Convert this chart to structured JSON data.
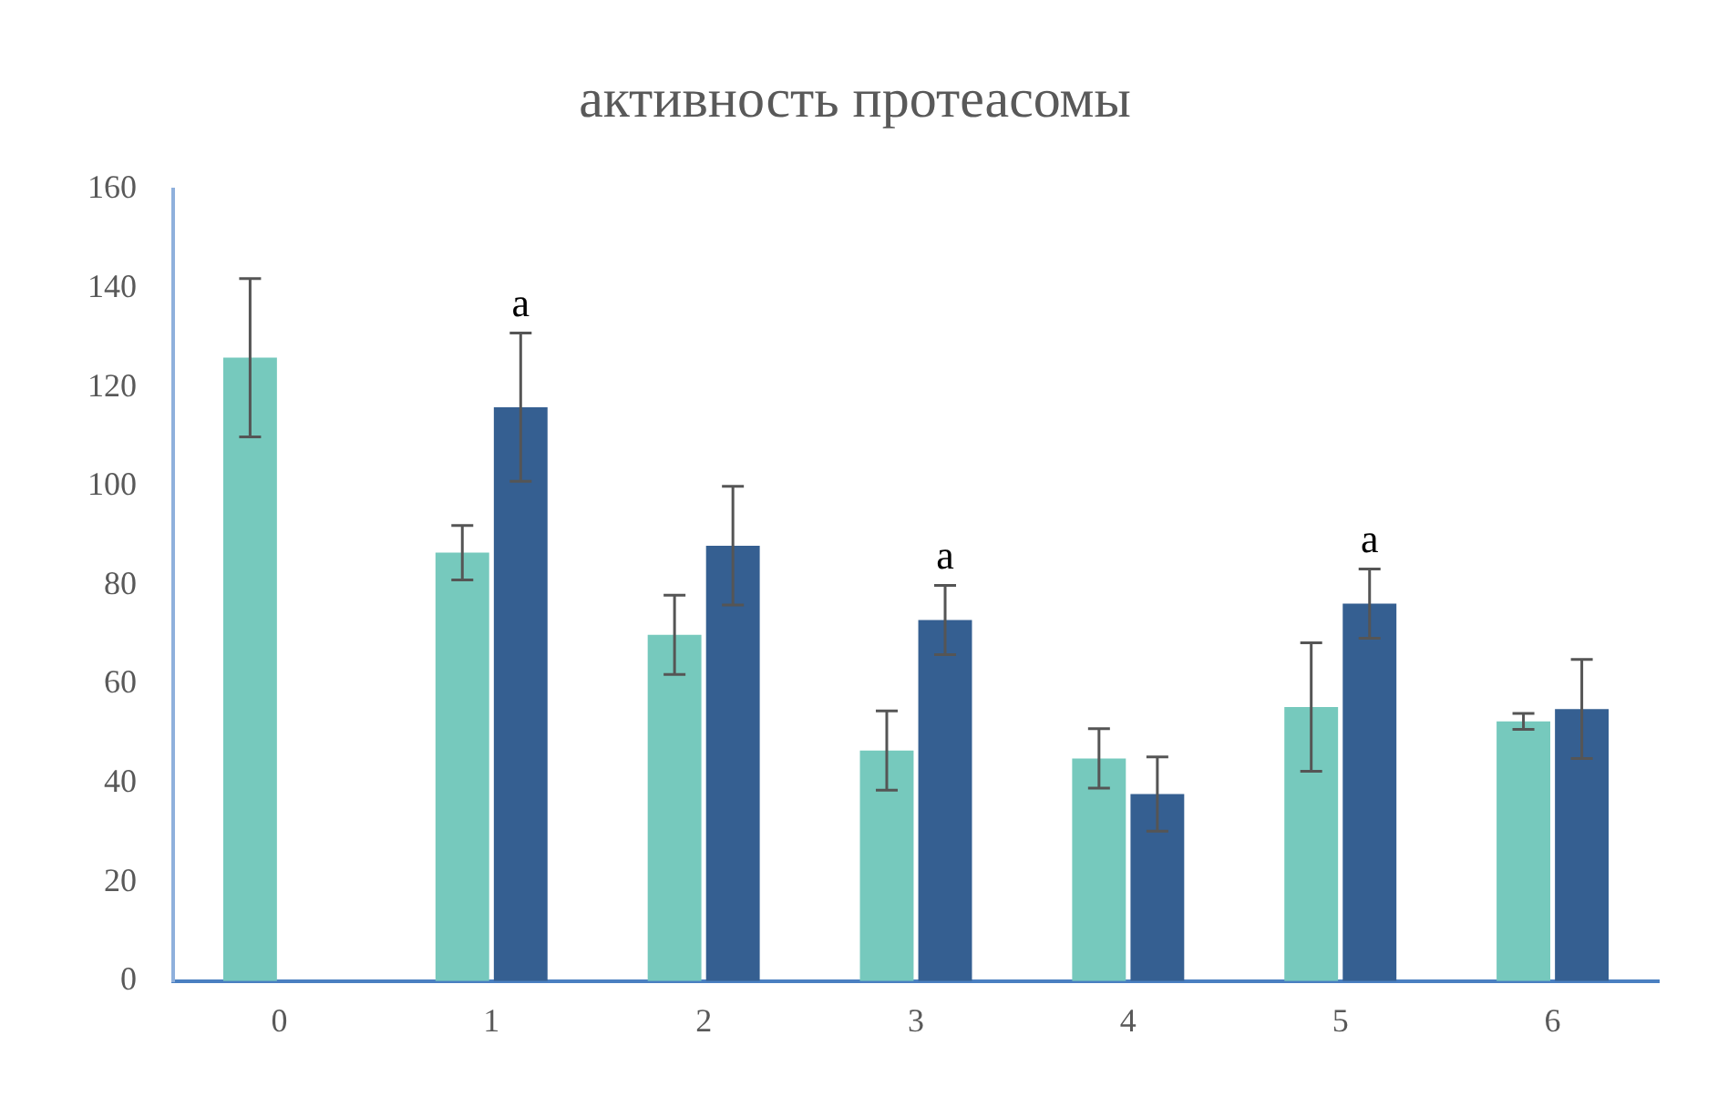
{
  "chart_data": {
    "type": "bar",
    "title": "активность протеасомы",
    "categories": [
      "0",
      "1",
      "2",
      "3",
      "4",
      "5",
      "6"
    ],
    "series": [
      {
        "color": "#76c9bd",
        "values": [
          126,
          86.6,
          70,
          46.6,
          45,
          55.4,
          52.5
        ],
        "errors": [
          16,
          5.5,
          8,
          8,
          6,
          13,
          1.6
        ]
      },
      {
        "color": "#355f91",
        "values": [
          null,
          116,
          88,
          73,
          37.8,
          76.3,
          55
        ],
        "errors": [
          null,
          15,
          12,
          7,
          7.5,
          7,
          10
        ]
      }
    ],
    "ylim": [
      0,
      160
    ],
    "yticks": [
      0,
      20,
      40,
      60,
      80,
      100,
      120,
      140,
      160
    ],
    "grid": false,
    "legend": false,
    "annotations": [
      {
        "text": "a",
        "x": "1",
        "y": 116
      },
      {
        "text": "a",
        "x": "3",
        "y": 73
      },
      {
        "text": "a",
        "x": "5",
        "y": 76.3
      }
    ]
  }
}
